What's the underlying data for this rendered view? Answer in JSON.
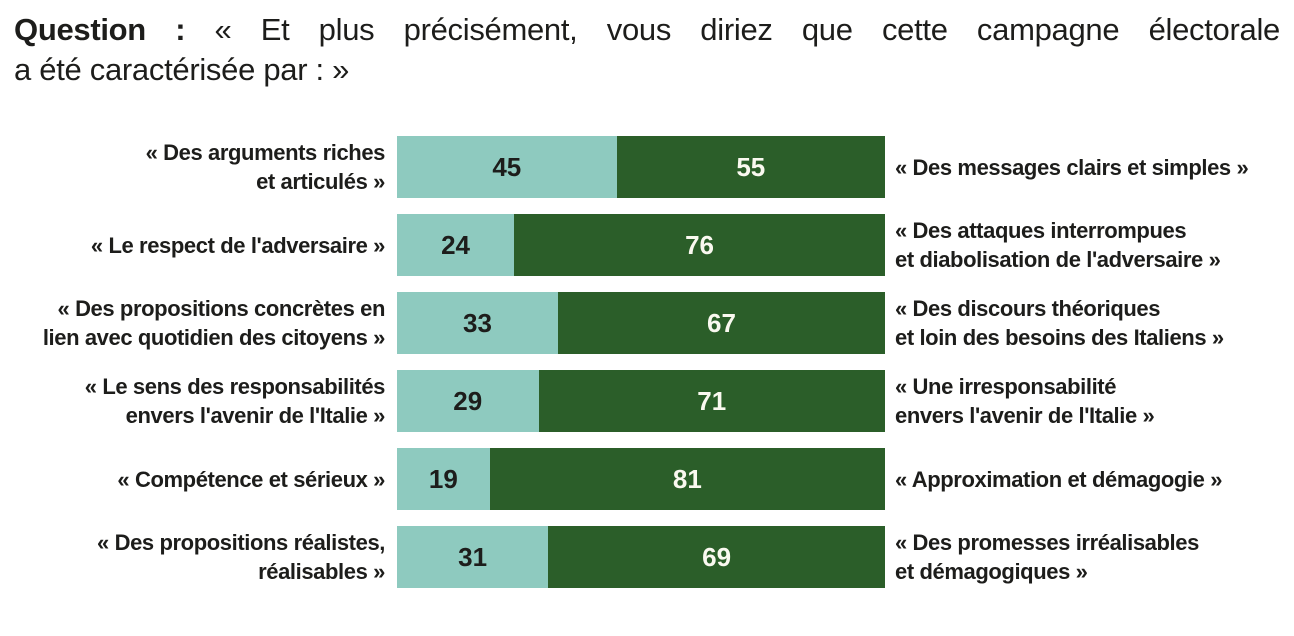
{
  "title": {
    "prefix": "Question :",
    "line1_rest": "« Et plus précisément, vous diriez que cette campagne électorale",
    "line2": "a été caractérisée par : »"
  },
  "colors": {
    "left_segment": "#8ecabf",
    "right_segment": "#2b5e29",
    "text": "#1d1d1b",
    "value_on_left": "#1d1d1b",
    "value_on_right": "#faf9f0"
  },
  "chart_data": {
    "type": "bar",
    "subtype": "horizontal-100pct-stacked-opposing-statements",
    "title": "Question : « Et plus précisément, vous diriez que cette campagne électorale a été caractérisée par : »",
    "xlim": [
      0,
      100
    ],
    "grid": false,
    "legend": "none",
    "categories_note": "each row opposes a left statement (light teal value) to a right statement (dark green value), values sum to 100",
    "rows": [
      {
        "left_label": "« Des arguments riches\net articulés »",
        "left_value": 45,
        "right_value": 55,
        "right_label": "« Des messages clairs et simples »"
      },
      {
        "left_label": "« Le respect de l'adversaire »",
        "left_value": 24,
        "right_value": 76,
        "right_label": "« Des attaques interrompues\net diabolisation de l'adversaire »"
      },
      {
        "left_label": "« Des propositions concrètes en\nlien avec quotidien des citoyens »",
        "left_value": 33,
        "right_value": 67,
        "right_label": "« Des discours théoriques\net loin des besoins des Italiens »"
      },
      {
        "left_label": "« Le sens des responsabilités\nenvers l'avenir de l'Italie »",
        "left_value": 29,
        "right_value": 71,
        "right_label": "« Une irresponsabilité\nenvers l'avenir de l'Italie »"
      },
      {
        "left_label": "« Compétence et sérieux »",
        "left_value": 19,
        "right_value": 81,
        "right_label": "« Approximation et démagogie »"
      },
      {
        "left_label": "« Des propositions réalistes,\nréalisables »",
        "left_value": 31,
        "right_value": 69,
        "right_label": "« Des promesses irréalisables\net démagogiques »"
      }
    ]
  }
}
